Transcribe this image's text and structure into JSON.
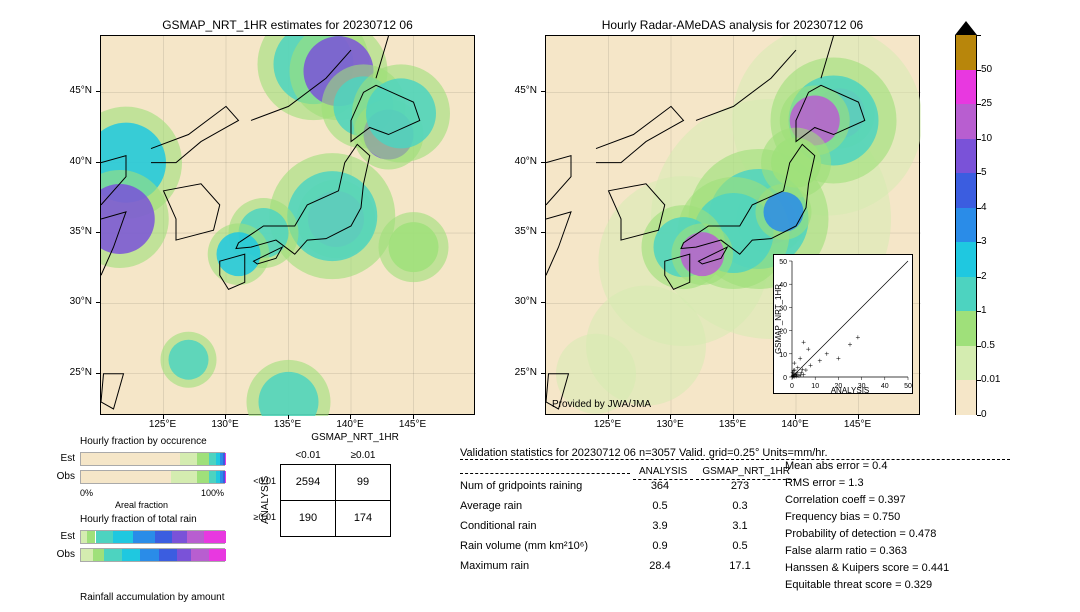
{
  "titles": {
    "left": "GSMAP_NRT_1HR estimates for 20230712 06",
    "right": "Hourly Radar-AMeDAS analysis for 20230712 06"
  },
  "map": {
    "xlim": [
      120,
      150
    ],
    "ylim": [
      22,
      49
    ],
    "xticks": [
      "125°E",
      "130°E",
      "135°E",
      "140°E",
      "145°E"
    ],
    "xtick_vals": [
      125,
      130,
      135,
      140,
      145
    ],
    "yticks": [
      "25°N",
      "30°N",
      "35°N",
      "40°N",
      "45°N"
    ],
    "ytick_vals": [
      25,
      30,
      35,
      40,
      45
    ],
    "background": "#f5e6c8"
  },
  "colorbar": {
    "levels": [
      0,
      0.01,
      0.5,
      1,
      2,
      3,
      4,
      5,
      10,
      25,
      50
    ],
    "labels": [
      "0",
      "0.01",
      "0.5",
      "1",
      "2",
      "3",
      "4",
      "5",
      "10",
      "25",
      "50"
    ],
    "colors": [
      "#f5e6c8",
      "#d4ecb0",
      "#9fe07a",
      "#4dd3c0",
      "#1fc8e0",
      "#2a8ce8",
      "#3b5de0",
      "#7a52d8",
      "#b85ed0",
      "#e838e0",
      "#b8860b"
    ]
  },
  "attribution": "Provided by JWA/JMA",
  "inset": {
    "xlabel": "ANALYSIS",
    "ylabel": "GSMAP_NRT_1HR",
    "lim": [
      0,
      50
    ],
    "ticks": [
      0,
      10,
      20,
      30,
      40,
      50
    ]
  },
  "fraction_bars": {
    "occ_label": "Hourly fraction by occurence",
    "tot_label": "Hourly fraction of total rain",
    "acc_label": "Rainfall accumulation by amount",
    "axis0": "0%",
    "axis100": "100%",
    "areal": "Areal fraction",
    "rows": [
      "Est",
      "Obs"
    ],
    "occ": {
      "est": [
        {
          "c": "#f5e6c8",
          "w": 0.68
        },
        {
          "c": "#d4ecb0",
          "w": 0.12
        },
        {
          "c": "#9fe07a",
          "w": 0.08
        },
        {
          "c": "#4dd3c0",
          "w": 0.05
        },
        {
          "c": "#1fc8e0",
          "w": 0.03
        },
        {
          "c": "#2a8ce8",
          "w": 0.02
        },
        {
          "c": "#3b5de0",
          "w": 0.01
        },
        {
          "c": "#e838e0",
          "w": 0.01
        }
      ],
      "obs": [
        {
          "c": "#f5e6c8",
          "w": 0.62
        },
        {
          "c": "#d4ecb0",
          "w": 0.18
        },
        {
          "c": "#9fe07a",
          "w": 0.08
        },
        {
          "c": "#4dd3c0",
          "w": 0.05
        },
        {
          "c": "#1fc8e0",
          "w": 0.03
        },
        {
          "c": "#2a8ce8",
          "w": 0.02
        },
        {
          "c": "#3b5de0",
          "w": 0.01
        },
        {
          "c": "#e838e0",
          "w": 0.01
        }
      ]
    },
    "tot": {
      "est": [
        {
          "c": "#d4ecb0",
          "w": 0.04
        },
        {
          "c": "#9fe07a",
          "w": 0.06
        },
        {
          "c": "#4dd3c0",
          "w": 0.12
        },
        {
          "c": "#1fc8e0",
          "w": 0.14
        },
        {
          "c": "#2a8ce8",
          "w": 0.15
        },
        {
          "c": "#3b5de0",
          "w": 0.12
        },
        {
          "c": "#7a52d8",
          "w": 0.1
        },
        {
          "c": "#b85ed0",
          "w": 0.12
        },
        {
          "c": "#e838e0",
          "w": 0.15
        }
      ],
      "obs": [
        {
          "c": "#d4ecb0",
          "w": 0.08
        },
        {
          "c": "#9fe07a",
          "w": 0.08
        },
        {
          "c": "#4dd3c0",
          "w": 0.12
        },
        {
          "c": "#1fc8e0",
          "w": 0.13
        },
        {
          "c": "#2a8ce8",
          "w": 0.13
        },
        {
          "c": "#3b5de0",
          "w": 0.12
        },
        {
          "c": "#7a52d8",
          "w": 0.1
        },
        {
          "c": "#b85ed0",
          "w": 0.12
        },
        {
          "c": "#e838e0",
          "w": 0.12
        }
      ]
    }
  },
  "contingency": {
    "title": "GSMAP_NRT_1HR",
    "col_headers": [
      "<0.01",
      "≥0.01"
    ],
    "row_headers": [
      "<0.01",
      "≥0.01"
    ],
    "ylabel": "ANALYSIS",
    "cells": [
      [
        "2594",
        "99"
      ],
      [
        "190",
        "174"
      ]
    ]
  },
  "validation": {
    "title": "Validation statistics for 20230712 06  n=3057 Valid. grid=0.25°  Units=mm/hr.",
    "col_headers": [
      "ANALYSIS",
      "GSMAP_NRT_1HR"
    ],
    "rows": [
      {
        "label": "Num of gridpoints raining",
        "a": "364",
        "b": "273"
      },
      {
        "label": "Average rain",
        "a": "0.5",
        "b": "0.3"
      },
      {
        "label": "Conditional rain",
        "a": "3.9",
        "b": "3.1"
      },
      {
        "label": "Rain volume (mm km²10⁶)",
        "a": "0.9",
        "b": "0.5"
      },
      {
        "label": "Maximum rain",
        "a": "28.4",
        "b": "17.1"
      }
    ],
    "metrics": [
      {
        "label": "Mean abs error =",
        "v": "0.4"
      },
      {
        "label": "RMS error =",
        "v": "1.3"
      },
      {
        "label": "Correlation coeff =",
        "v": "0.397"
      },
      {
        "label": "Frequency bias =",
        "v": "0.750"
      },
      {
        "label": "Probability of detection =",
        "v": "0.478"
      },
      {
        "label": "False alarm ratio =",
        "v": "0.363"
      },
      {
        "label": "Hanssen & Kuipers score =",
        "v": "0.441"
      },
      {
        "label": "Equitable threat score =",
        "v": "0.329"
      }
    ]
  },
  "precip_left": [
    {
      "lon": 138.8,
      "lat": 36.0,
      "r": 28,
      "c": "#e838e0"
    },
    {
      "lon": 138.5,
      "lat": 36.2,
      "r": 45,
      "c": "#4dd3c0"
    },
    {
      "lon": 137.0,
      "lat": 47.0,
      "r": 40,
      "c": "#4dd3c0"
    },
    {
      "lon": 139.0,
      "lat": 46.5,
      "r": 35,
      "c": "#7a52d8"
    },
    {
      "lon": 141.0,
      "lat": 44.0,
      "r": 30,
      "c": "#4dd3c0"
    },
    {
      "lon": 143.0,
      "lat": 42.0,
      "r": 25,
      "c": "#7a52d8"
    },
    {
      "lon": 144.0,
      "lat": 43.5,
      "r": 35,
      "c": "#4dd3c0"
    },
    {
      "lon": 122.0,
      "lat": 40.0,
      "r": 40,
      "c": "#1fc8e0"
    },
    {
      "lon": 121.5,
      "lat": 36.0,
      "r": 35,
      "c": "#7a52d8"
    },
    {
      "lon": 133.0,
      "lat": 35.0,
      "r": 25,
      "c": "#4dd3c0"
    },
    {
      "lon": 131.0,
      "lat": 33.5,
      "r": 22,
      "c": "#1fc8e0"
    },
    {
      "lon": 127.0,
      "lat": 26.0,
      "r": 20,
      "c": "#4dd3c0"
    },
    {
      "lon": 135.0,
      "lat": 23.0,
      "r": 30,
      "c": "#4dd3c0"
    },
    {
      "lon": 145.0,
      "lat": 34.0,
      "r": 25,
      "c": "#9fe07a"
    }
  ],
  "precip_right": [
    {
      "lon": 138.0,
      "lat": 36.0,
      "r": 25,
      "c": "#e838e0"
    },
    {
      "lon": 137.0,
      "lat": 36.0,
      "r": 50,
      "c": "#4dd3c0"
    },
    {
      "lon": 135.0,
      "lat": 35.0,
      "r": 40,
      "c": "#4dd3c0"
    },
    {
      "lon": 143.5,
      "lat": 43.5,
      "r": 25,
      "c": "#e838e0"
    },
    {
      "lon": 143.0,
      "lat": 43.0,
      "r": 45,
      "c": "#4dd3c0"
    },
    {
      "lon": 141.5,
      "lat": 43.0,
      "r": 25,
      "c": "#b85ed0"
    },
    {
      "lon": 131.0,
      "lat": 34.0,
      "r": 30,
      "c": "#4dd3c0"
    },
    {
      "lon": 132.5,
      "lat": 33.5,
      "r": 22,
      "c": "#b85ed0"
    },
    {
      "lon": 140.0,
      "lat": 40.0,
      "r": 25,
      "c": "#9fe07a"
    },
    {
      "lon": 139.0,
      "lat": 36.5,
      "r": 20,
      "c": "#2a8ce8"
    }
  ],
  "halo_right": [
    {
      "lon": 138.0,
      "lat": 36.0,
      "r": 120,
      "c": "#f0e4c0"
    },
    {
      "lon": 142.5,
      "lat": 43.0,
      "r": 95,
      "c": "#f0e4c0"
    },
    {
      "lon": 131.0,
      "lat": 33.0,
      "r": 85,
      "c": "#f0e4c0"
    },
    {
      "lon": 128.0,
      "lat": 27.0,
      "r": 60,
      "c": "#f0e4c0"
    },
    {
      "lon": 124.0,
      "lat": 25.0,
      "r": 40,
      "c": "#f0e4c0"
    }
  ],
  "scatter_points": [
    {
      "x": 0.5,
      "y": 0.3
    },
    {
      "x": 1.0,
      "y": 0.2
    },
    {
      "x": 1.5,
      "y": 0.8
    },
    {
      "x": 2.0,
      "y": 1.2
    },
    {
      "x": 3.0,
      "y": 0.5
    },
    {
      "x": 0.8,
      "y": 1.5
    },
    {
      "x": 4.0,
      "y": 2.0
    },
    {
      "x": 1.2,
      "y": 3.0
    },
    {
      "x": 5.0,
      "y": 1.0
    },
    {
      "x": 2.5,
      "y": 4.0
    },
    {
      "x": 0.3,
      "y": 2.0
    },
    {
      "x": 6.0,
      "y": 3.0
    },
    {
      "x": 8.0,
      "y": 5.0
    },
    {
      "x": 1.0,
      "y": 6.0
    },
    {
      "x": 3.5,
      "y": 8.0
    },
    {
      "x": 12.0,
      "y": 7.0
    },
    {
      "x": 15.0,
      "y": 10.0
    },
    {
      "x": 7.0,
      "y": 12.0
    },
    {
      "x": 20.0,
      "y": 8.0
    },
    {
      "x": 5.0,
      "y": 15.0
    },
    {
      "x": 25.0,
      "y": 14.0
    },
    {
      "x": 28.4,
      "y": 17.1
    },
    {
      "x": 0.1,
      "y": 0.1
    },
    {
      "x": 0.2,
      "y": 0.05
    },
    {
      "x": 0.6,
      "y": 0.4
    },
    {
      "x": 0.4,
      "y": 0.7
    },
    {
      "x": 1.8,
      "y": 0.3
    },
    {
      "x": 0.9,
      "y": 0.9
    },
    {
      "x": 2.2,
      "y": 1.8
    },
    {
      "x": 3.8,
      "y": 0.9
    },
    {
      "x": 0.7,
      "y": 2.8
    },
    {
      "x": 4.5,
      "y": 3.2
    }
  ]
}
